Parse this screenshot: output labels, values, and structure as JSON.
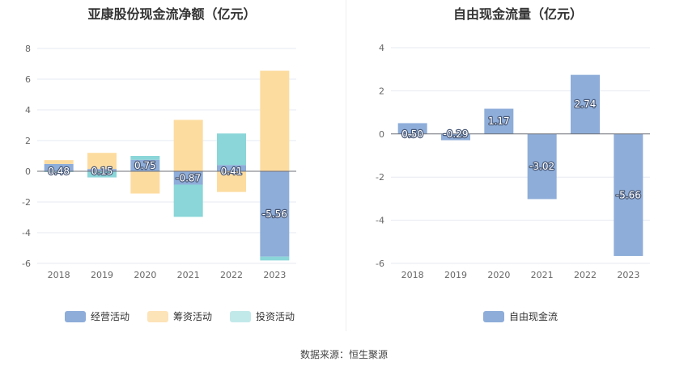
{
  "chart_data": [
    {
      "type": "bar",
      "stacked": true,
      "title": "亚康股份现金流净额（亿元）",
      "categories": [
        "2018",
        "2019",
        "2020",
        "2021",
        "2022",
        "2023"
      ],
      "series": [
        {
          "name": "经营活动",
          "color": "#8eadd9",
          "values": [
            0.48,
            0.15,
            0.75,
            -0.87,
            0.41,
            -5.56
          ]
        },
        {
          "name": "筹资活动",
          "color": "#fddca0",
          "values": [
            0.25,
            1.05,
            -1.45,
            3.35,
            -1.35,
            6.55
          ]
        },
        {
          "name": "投资活动",
          "color": "#8ad6d8",
          "values": [
            -0.05,
            -0.4,
            0.25,
            -2.1,
            2.05,
            -0.25
          ]
        }
      ],
      "labels": [
        "0.48",
        "0.15",
        "0.75",
        "-0.87",
        "0.41",
        "-5.56"
      ],
      "yticks": [
        "8",
        "6",
        "4",
        "2",
        "0",
        "-2",
        "-4",
        "-6"
      ],
      "ylim": [
        -6,
        8
      ],
      "legend": [
        "经营活动",
        "筹资活动",
        "投资活动"
      ],
      "legend_position": "bottom"
    },
    {
      "type": "bar",
      "title": "自由现金流量（亿元）",
      "categories": [
        "2018",
        "2019",
        "2020",
        "2021",
        "2022",
        "2023"
      ],
      "series": [
        {
          "name": "自由现金流",
          "color": "#8eadd9",
          "values": [
            0.5,
            -0.29,
            1.17,
            -3.02,
            2.74,
            -5.66
          ]
        }
      ],
      "labels": [
        "0.50",
        "-0.29",
        "1.17",
        "-3.02",
        "2.74",
        "-5.66"
      ],
      "yticks": [
        "4",
        "2",
        "0",
        "-2",
        "-4",
        "-6"
      ],
      "ylim": [
        -6,
        4
      ],
      "legend": [
        "自由现金流"
      ],
      "legend_position": "bottom"
    }
  ],
  "footer": {
    "source": "数据来源：恒生聚源"
  }
}
